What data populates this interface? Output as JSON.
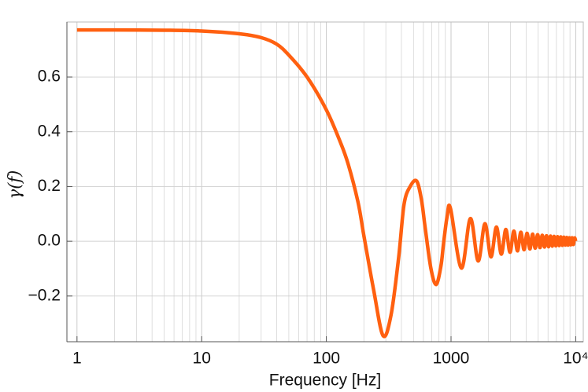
{
  "chart_data": {
    "type": "line",
    "x_label": "Frequency [Hz]",
    "y_label": "γ(f)",
    "log_x": true,
    "grid": true,
    "xlim": [
      0.83,
      11500
    ],
    "ylim": [
      -0.367,
      0.801
    ],
    "xticks": [
      1,
      10,
      100,
      1000,
      {
        "value": 10000,
        "label": "10⁴"
      }
    ],
    "x_minor_ticks": [
      2,
      3,
      4,
      5,
      6,
      7,
      8,
      9,
      20,
      30,
      40,
      50,
      60,
      70,
      80,
      90,
      200,
      300,
      400,
      500,
      600,
      700,
      800,
      900,
      2000,
      3000,
      4000,
      5000,
      6000,
      7000,
      8000,
      9000
    ],
    "yticks": [
      {
        "value": -0.2,
        "label": "−0.2"
      },
      {
        "value": 0,
        "label": "0.0"
      },
      0.2,
      0.4,
      0.6
    ],
    "series": [
      {
        "color": "#ff6010",
        "x": [
          1,
          2,
          5,
          10,
          20,
          30,
          40,
          50,
          70,
          100,
          130,
          150,
          180,
          200,
          240,
          285,
          330,
          380,
          420,
          470,
          530,
          580,
          620,
          690,
          760,
          830,
          870,
          930,
          990,
          1210,
          1430,
          1650,
          1870,
          2090,
          2310,
          2530,
          2750,
          2970,
          3190,
          3410,
          3630,
          3850,
          4070,
          4290,
          4510,
          4730,
          4950,
          5170,
          5390,
          5610,
          5830,
          6050,
          6270,
          6490,
          6710,
          6930,
          7150,
          7370,
          7590,
          7810,
          8030,
          8250,
          8470,
          8690,
          8910,
          9130,
          9350,
          9570,
          9790,
          10000
        ],
        "values": [
          0.772,
          0.772,
          0.771,
          0.768,
          0.758,
          0.744,
          0.72,
          0.68,
          0.6,
          0.48,
          0.36,
          0.28,
          0.14,
          0.02,
          -0.18,
          -0.345,
          -0.27,
          -0.06,
          0.135,
          0.2,
          0.22,
          0.15,
          0.05,
          -0.1,
          -0.158,
          -0.09,
          -0.01,
          0.09,
          0.12,
          -0.098,
          0.083,
          -0.072,
          0.064,
          -0.057,
          0.052,
          -0.047,
          0.043,
          -0.04,
          0.037,
          -0.035,
          0.033,
          -0.031,
          0.029,
          -0.028,
          0.026,
          -0.025,
          0.024,
          -0.023,
          0.022,
          -0.021,
          0.02,
          -0.02,
          0.019,
          -0.018,
          0.018,
          -0.017,
          0.017,
          -0.016,
          0.016,
          -0.015,
          0.015,
          -0.014,
          0.014,
          -0.014,
          0.013,
          -0.013,
          0.013,
          -0.012,
          0.012,
          0.0
        ]
      }
    ]
  }
}
